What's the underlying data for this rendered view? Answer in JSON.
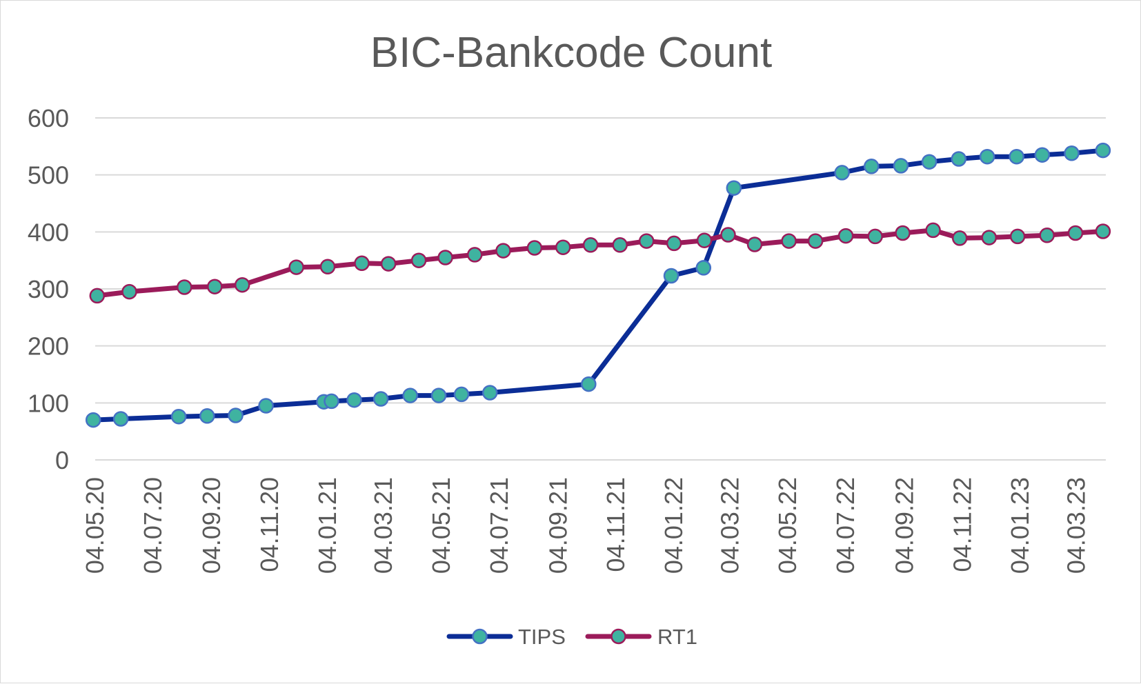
{
  "chart_data": {
    "type": "line",
    "title": "BIC-Bankcode Count",
    "xlabel": "",
    "ylabel": "",
    "x_start": "04.05.20",
    "x_end": "04.04.23",
    "ylim": [
      0,
      600
    ],
    "yticks": [
      "0",
      "100",
      "200",
      "300",
      "400",
      "500",
      "600"
    ],
    "xtick_labels": [
      "04.05.20",
      "04.07.20",
      "04.09.20",
      "04.11.20",
      "04.01.21",
      "04.03.21",
      "04.05.21",
      "04.07.21",
      "04.09.21",
      "04.11.21",
      "04.01.22",
      "04.03.22",
      "04.05.22",
      "04.07.22",
      "04.09.22",
      "04.11.22",
      "04.01.23",
      "04.03.23"
    ],
    "grid": true,
    "legend_position": "bottom",
    "series": [
      {
        "name": "TIPS",
        "color": "#0b2d96",
        "marker_fill": "#3fb3a0",
        "marker_edge": "#4472c4",
        "points": [
          {
            "x": "2020-05-02",
            "y": 70
          },
          {
            "x": "2020-05-31",
            "y": 72
          },
          {
            "x": "2020-07-31",
            "y": 76
          },
          {
            "x": "2020-08-30",
            "y": 77
          },
          {
            "x": "2020-09-29",
            "y": 78
          },
          {
            "x": "2020-10-31",
            "y": 95
          },
          {
            "x": "2020-12-31",
            "y": 102
          },
          {
            "x": "2021-01-08",
            "y": 103
          },
          {
            "x": "2021-02-01",
            "y": 105
          },
          {
            "x": "2021-03-01",
            "y": 107
          },
          {
            "x": "2021-04-01",
            "y": 113
          },
          {
            "x": "2021-05-01",
            "y": 113
          },
          {
            "x": "2021-05-25",
            "y": 115
          },
          {
            "x": "2021-06-24",
            "y": 118
          },
          {
            "x": "2021-10-06",
            "y": 133
          },
          {
            "x": "2022-01-01",
            "y": 323
          },
          {
            "x": "2022-02-04",
            "y": 337
          },
          {
            "x": "2022-03-08",
            "y": 477
          },
          {
            "x": "2022-06-30",
            "y": 504
          },
          {
            "x": "2022-07-31",
            "y": 515
          },
          {
            "x": "2022-08-31",
            "y": 516
          },
          {
            "x": "2022-09-30",
            "y": 523
          },
          {
            "x": "2022-10-31",
            "y": 528
          },
          {
            "x": "2022-11-30",
            "y": 532
          },
          {
            "x": "2022-12-31",
            "y": 532
          },
          {
            "x": "2023-01-27",
            "y": 535
          },
          {
            "x": "2023-02-27",
            "y": 538
          },
          {
            "x": "2023-04-01",
            "y": 543
          }
        ]
      },
      {
        "name": "RT1",
        "color": "#9b1b5a",
        "marker_fill": "#3fb3a0",
        "marker_edge": "#9b1b5a",
        "points": [
          {
            "x": "2020-05-06",
            "y": 288
          },
          {
            "x": "2020-06-09",
            "y": 295
          },
          {
            "x": "2020-08-06",
            "y": 303
          },
          {
            "x": "2020-09-07",
            "y": 304
          },
          {
            "x": "2020-10-06",
            "y": 307
          },
          {
            "x": "2020-12-02",
            "y": 338
          },
          {
            "x": "2021-01-04",
            "y": 339
          },
          {
            "x": "2021-02-09",
            "y": 345
          },
          {
            "x": "2021-03-09",
            "y": 344
          },
          {
            "x": "2021-04-10",
            "y": 350
          },
          {
            "x": "2021-05-08",
            "y": 355
          },
          {
            "x": "2021-06-08",
            "y": 360
          },
          {
            "x": "2021-07-08",
            "y": 367
          },
          {
            "x": "2021-08-10",
            "y": 372
          },
          {
            "x": "2021-09-09",
            "y": 373
          },
          {
            "x": "2021-10-08",
            "y": 377
          },
          {
            "x": "2021-11-08",
            "y": 377
          },
          {
            "x": "2021-12-06",
            "y": 384
          },
          {
            "x": "2022-01-04",
            "y": 380
          },
          {
            "x": "2022-02-05",
            "y": 385
          },
          {
            "x": "2022-03-02",
            "y": 395
          },
          {
            "x": "2022-03-30",
            "y": 378
          },
          {
            "x": "2022-05-05",
            "y": 384
          },
          {
            "x": "2022-06-02",
            "y": 384
          },
          {
            "x": "2022-07-04",
            "y": 393
          },
          {
            "x": "2022-08-04",
            "y": 392
          },
          {
            "x": "2022-09-02",
            "y": 398
          },
          {
            "x": "2022-10-04",
            "y": 403
          },
          {
            "x": "2022-11-01",
            "y": 389
          },
          {
            "x": "2022-12-02",
            "y": 390
          },
          {
            "x": "2023-01-01",
            "y": 392
          },
          {
            "x": "2023-02-01",
            "y": 394
          },
          {
            "x": "2023-03-03",
            "y": 398
          },
          {
            "x": "2023-04-01",
            "y": 401
          }
        ]
      }
    ]
  }
}
